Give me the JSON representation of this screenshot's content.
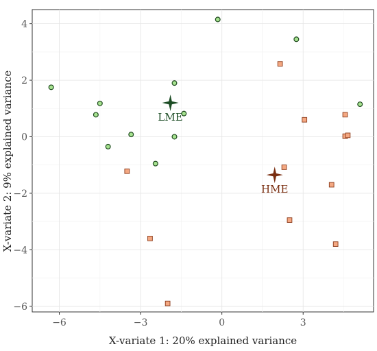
{
  "chart_data": {
    "type": "scatter",
    "xlabel": "X-variate 1: 20% explained variance",
    "ylabel": "X-variate 2: 9% explained variance",
    "xlim": [
      -7.0,
      5.6
    ],
    "ylim": [
      -6.2,
      4.5
    ],
    "x_ticks": [
      -6,
      -3,
      0,
      3
    ],
    "x_tick_labels": [
      "−6",
      "−3",
      "0",
      "3"
    ],
    "y_ticks": [
      -6,
      -4,
      -2,
      0,
      2,
      4
    ],
    "y_tick_labels": [
      "−6",
      "−4",
      "−2",
      "0",
      "2",
      "4"
    ],
    "grid": true,
    "series": [
      {
        "marker": "circle",
        "fill": "#a6e28f",
        "stroke": "#1f4a1f",
        "points": [
          {
            "x": -6.3,
            "y": 1.75
          },
          {
            "x": -4.5,
            "y": 1.18
          },
          {
            "x": -4.65,
            "y": 0.78
          },
          {
            "x": -4.2,
            "y": -0.35
          },
          {
            "x": -3.35,
            "y": 0.08
          },
          {
            "x": -2.45,
            "y": -0.95
          },
          {
            "x": -1.75,
            "y": 0.0
          },
          {
            "x": -1.75,
            "y": 1.9
          },
          {
            "x": -1.4,
            "y": 0.82
          },
          {
            "x": -0.15,
            "y": 4.15
          },
          {
            "x": 2.75,
            "y": 3.45
          },
          {
            "x": 5.1,
            "y": 1.15
          }
        ]
      },
      {
        "marker": "square",
        "fill": "#f4a882",
        "stroke": "#8a3a1a",
        "points": [
          {
            "x": 2.15,
            "y": 2.58
          },
          {
            "x": 3.05,
            "y": 0.6
          },
          {
            "x": 4.55,
            "y": 0.78
          },
          {
            "x": 4.55,
            "y": 0.02
          },
          {
            "x": 4.65,
            "y": 0.05
          },
          {
            "x": 2.3,
            "y": -1.08
          },
          {
            "x": 4.05,
            "y": -1.7
          },
          {
            "x": 2.5,
            "y": -2.95
          },
          {
            "x": 4.2,
            "y": -3.8
          },
          {
            "x": -3.5,
            "y": -1.22
          },
          {
            "x": -2.65,
            "y": -3.6
          },
          {
            "x": -2.0,
            "y": -5.9
          }
        ]
      }
    ],
    "centroids": [
      {
        "label": "LME",
        "x": -1.9,
        "y": 1.2,
        "color": "#1d4d25"
      },
      {
        "label": "HME",
        "x": 1.95,
        "y": -1.35,
        "color": "#7a2e10"
      }
    ]
  }
}
